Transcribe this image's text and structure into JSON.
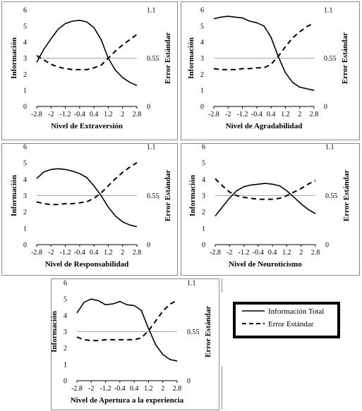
{
  "legend": {
    "items": [
      {
        "label": "Información Total",
        "style": "solid"
      },
      {
        "label": "Error Estándar",
        "style": "dashed"
      }
    ]
  },
  "colors": {
    "line": "#000000",
    "ref_line": "#a6a6a6",
    "frame": "#8c8c8c",
    "background": "#ffffff"
  },
  "chart_data": [
    {
      "type": "line",
      "xlabel": "Nivel de Extraversión",
      "ylabel": "Información",
      "y2label": "Error Estándar",
      "x": [
        -2.8,
        -2.4,
        -2.0,
        -1.6,
        -1.2,
        -0.8,
        -0.4,
        0.0,
        0.4,
        0.8,
        1.2,
        1.6,
        2.0,
        2.4,
        2.8
      ],
      "x_ticks": [
        "-2.8",
        "-2",
        "-1.2",
        "-0.4",
        "0.4",
        "1.2",
        "2",
        "2.8"
      ],
      "ylim": [
        0,
        6
      ],
      "y_ticks": [
        "0",
        "1",
        "2",
        "3",
        "4",
        "5",
        "6"
      ],
      "y2lim": [
        0,
        1.1
      ],
      "y2_ticks": [
        "0",
        "0.55",
        "1.1"
      ],
      "series": [
        {
          "name": "Información Total",
          "axis": "left",
          "style": "solid",
          "values": [
            2.75,
            3.55,
            4.2,
            4.8,
            5.15,
            5.3,
            5.35,
            5.25,
            4.9,
            4.15,
            3.0,
            2.25,
            1.8,
            1.5,
            1.3
          ]
        },
        {
          "name": "Error Estándar",
          "axis": "right",
          "style": "dashed",
          "values": [
            0.58,
            0.53,
            0.48,
            0.45,
            0.43,
            0.42,
            0.42,
            0.42,
            0.44,
            0.47,
            0.55,
            0.63,
            0.7,
            0.76,
            0.82
          ]
        }
      ]
    },
    {
      "type": "line",
      "xlabel": "Nivel de Agradabilidad",
      "ylabel": "Información",
      "y2label": "Error Estándar",
      "x": [
        -2.8,
        -2.4,
        -2.0,
        -1.6,
        -1.2,
        -0.8,
        -0.4,
        0.0,
        0.4,
        0.8,
        1.2,
        1.6,
        2.0,
        2.4,
        2.8
      ],
      "x_ticks": [
        "-2.8",
        "-2",
        "-1.2",
        "-0.4",
        "0.4",
        "1.2",
        "2",
        "2.8"
      ],
      "ylim": [
        0,
        6
      ],
      "y_ticks": [
        "0",
        "1",
        "2",
        "3",
        "4",
        "5",
        "6"
      ],
      "y2lim": [
        0,
        1.1
      ],
      "y2_ticks": [
        "0",
        "0.55",
        "1.1"
      ],
      "series": [
        {
          "name": "Información Total",
          "axis": "left",
          "style": "solid",
          "values": [
            5.45,
            5.55,
            5.6,
            5.55,
            5.5,
            5.3,
            5.2,
            5.0,
            4.3,
            3.1,
            2.1,
            1.5,
            1.2,
            1.1,
            1.0
          ]
        },
        {
          "name": "Error Estándar",
          "axis": "right",
          "style": "dashed",
          "values": [
            0.43,
            0.42,
            0.42,
            0.42,
            0.43,
            0.43,
            0.44,
            0.44,
            0.48,
            0.57,
            0.68,
            0.78,
            0.85,
            0.91,
            0.95
          ]
        }
      ]
    },
    {
      "type": "line",
      "xlabel": "Nivel de Responsabilidad",
      "ylabel": "Información",
      "y2label": "Error Estándar",
      "x": [
        -2.8,
        -2.4,
        -2.0,
        -1.6,
        -1.2,
        -0.8,
        -0.4,
        0.0,
        0.4,
        0.8,
        1.2,
        1.6,
        2.0,
        2.4,
        2.8
      ],
      "x_ticks": [
        "-2.8",
        "-2",
        "-1.2",
        "-0.4",
        "0.4",
        "1.2",
        "2",
        "2.8"
      ],
      "ylim": [
        0,
        6
      ],
      "y_ticks": [
        "0",
        "1",
        "2",
        "3",
        "4",
        "5",
        "6"
      ],
      "y2lim": [
        0,
        1.1
      ],
      "y2_ticks": [
        "0",
        "0.55",
        "1.1"
      ],
      "series": [
        {
          "name": "Información Total",
          "axis": "left",
          "style": "solid",
          "values": [
            4.05,
            4.45,
            4.6,
            4.65,
            4.6,
            4.5,
            4.35,
            4.1,
            3.6,
            3.0,
            2.3,
            1.75,
            1.4,
            1.2,
            1.1
          ]
        },
        {
          "name": "Error Estándar",
          "axis": "right",
          "style": "dashed",
          "values": [
            0.48,
            0.46,
            0.45,
            0.45,
            0.46,
            0.46,
            0.47,
            0.48,
            0.52,
            0.58,
            0.66,
            0.74,
            0.81,
            0.87,
            0.92
          ]
        }
      ]
    },
    {
      "type": "line",
      "xlabel": "Nivel de Neuroticismo",
      "ylabel": "Información",
      "y2label": "Error Estándar",
      "x": [
        -2.8,
        -2.4,
        -2.0,
        -1.6,
        -1.2,
        -0.8,
        -0.4,
        0.0,
        0.4,
        0.8,
        1.2,
        1.6,
        2.0,
        2.4,
        2.8
      ],
      "x_ticks": [
        "-2.8",
        "-2",
        "-1.2",
        "-0.4",
        "0.4",
        "1.2",
        "2",
        "2.8"
      ],
      "ylim": [
        0,
        6
      ],
      "y_ticks": [
        "0",
        "1",
        "2",
        "3",
        "4",
        "5",
        "6"
      ],
      "y2lim": [
        0,
        1.1
      ],
      "y2_ticks": [
        "0",
        "0.55",
        "1.1"
      ],
      "series": [
        {
          "name": "Información Total",
          "axis": "left",
          "style": "solid",
          "values": [
            1.75,
            2.3,
            2.85,
            3.3,
            3.55,
            3.65,
            3.7,
            3.75,
            3.7,
            3.6,
            3.3,
            2.9,
            2.5,
            2.15,
            1.9
          ]
        },
        {
          "name": "Error Estándar",
          "axis": "right",
          "style": "dashed",
          "values": [
            0.74,
            0.66,
            0.59,
            0.55,
            0.53,
            0.52,
            0.51,
            0.51,
            0.51,
            0.52,
            0.55,
            0.59,
            0.63,
            0.68,
            0.72
          ]
        }
      ]
    },
    {
      "type": "line",
      "xlabel": "Nivel de Apertura a la experiencia",
      "ylabel": "Información",
      "y2label": "Error Estándar",
      "x": [
        -2.8,
        -2.4,
        -2.0,
        -1.6,
        -1.2,
        -0.8,
        -0.4,
        0.0,
        0.4,
        0.8,
        1.2,
        1.6,
        2.0,
        2.4,
        2.8
      ],
      "x_ticks": [
        "-2.8",
        "-2",
        "-1.2",
        "-0.4",
        "0.4",
        "1.2",
        "2",
        "2.8"
      ],
      "ylim": [
        0,
        6
      ],
      "y_ticks": [
        "0",
        "1",
        "2",
        "3",
        "4",
        "5",
        "6"
      ],
      "y2lim": [
        0,
        1.1
      ],
      "y2_ticks": [
        "0",
        "0.55",
        "1.1"
      ],
      "series": [
        {
          "name": "Información Total",
          "axis": "left",
          "style": "solid",
          "values": [
            4.15,
            4.8,
            5.0,
            4.9,
            4.65,
            4.7,
            4.85,
            4.65,
            4.6,
            4.3,
            3.2,
            2.2,
            1.6,
            1.3,
            1.2
          ]
        },
        {
          "name": "Error Estándar",
          "axis": "right",
          "style": "dashed",
          "values": [
            0.49,
            0.46,
            0.45,
            0.45,
            0.46,
            0.46,
            0.46,
            0.46,
            0.46,
            0.48,
            0.56,
            0.67,
            0.78,
            0.86,
            0.9
          ]
        }
      ]
    }
  ]
}
